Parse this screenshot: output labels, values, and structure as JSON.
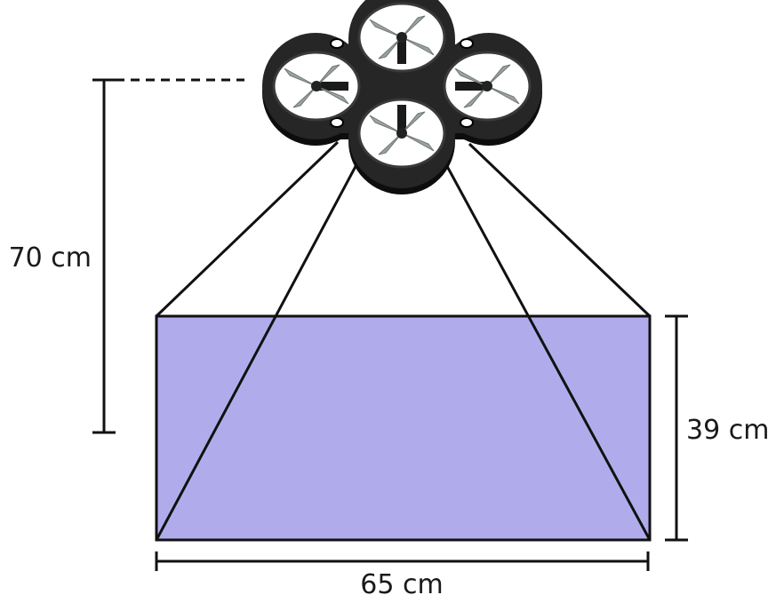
{
  "labels": {
    "height": "70 cm",
    "depth": "39 cm",
    "width": "65 cm"
  },
  "colors": {
    "footprint_fill": "#b0acec",
    "line": "#111111",
    "drone_frame": "#202020",
    "propeller": "#9aa39e"
  },
  "icons": {
    "drone": "quadcopter-icon"
  }
}
